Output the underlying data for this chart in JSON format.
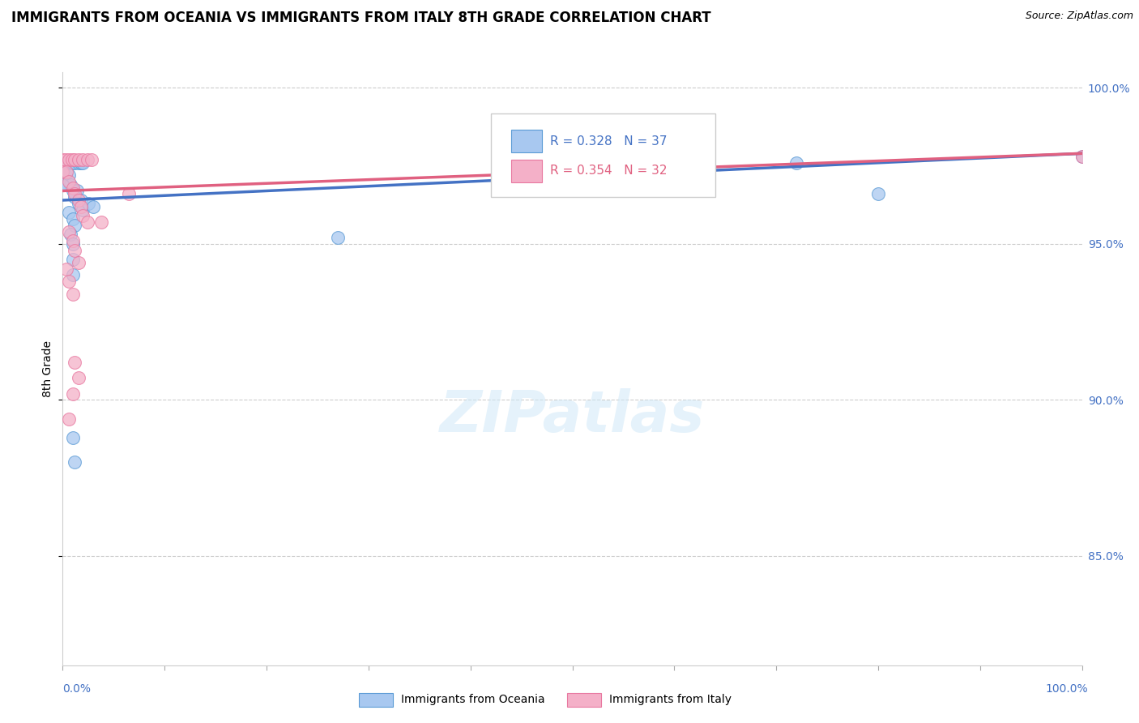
{
  "title": "IMMIGRANTS FROM OCEANIA VS IMMIGRANTS FROM ITALY 8TH GRADE CORRELATION CHART",
  "source": "Source: ZipAtlas.com",
  "ylabel": "8th Grade",
  "y_axis_min": 0.815,
  "y_axis_max": 1.005,
  "x_axis_min": 0.0,
  "x_axis_max": 1.0,
  "legend_r_blue": "R = 0.328",
  "legend_n_blue": "N = 37",
  "legend_r_pink": "R = 0.354",
  "legend_n_pink": "N = 32",
  "legend_label_blue": "Immigrants from Oceania",
  "legend_label_pink": "Immigrants from Italy",
  "blue_color": "#A8C8F0",
  "pink_color": "#F4B0C8",
  "blue_edge_color": "#5B9BD5",
  "pink_edge_color": "#E878A0",
  "blue_line_color": "#4472C4",
  "pink_line_color": "#E06080",
  "watermark_text": "ZIPatlas",
  "yticks": [
    0.85,
    0.9,
    0.95,
    1.0
  ],
  "ytick_labels": [
    "85.0%",
    "90.0%",
    "95.0%",
    "100.0%"
  ],
  "blue_points": [
    [
      0.0,
      0.976
    ],
    [
      0.002,
      0.976
    ],
    [
      0.004,
      0.976
    ],
    [
      0.006,
      0.976
    ],
    [
      0.008,
      0.976
    ],
    [
      0.01,
      0.976
    ],
    [
      0.012,
      0.976
    ],
    [
      0.016,
      0.976
    ],
    [
      0.018,
      0.976
    ],
    [
      0.02,
      0.976
    ],
    [
      0.003,
      0.972
    ],
    [
      0.006,
      0.972
    ],
    [
      0.004,
      0.969
    ],
    [
      0.008,
      0.969
    ],
    [
      0.01,
      0.967
    ],
    [
      0.014,
      0.967
    ],
    [
      0.012,
      0.965
    ],
    [
      0.018,
      0.964
    ],
    [
      0.016,
      0.963
    ],
    [
      0.02,
      0.961
    ],
    [
      0.025,
      0.963
    ],
    [
      0.03,
      0.962
    ],
    [
      0.006,
      0.96
    ],
    [
      0.01,
      0.958
    ],
    [
      0.012,
      0.956
    ],
    [
      0.008,
      0.953
    ],
    [
      0.01,
      0.95
    ],
    [
      0.01,
      0.945
    ],
    [
      0.01,
      0.94
    ],
    [
      0.01,
      0.888
    ],
    [
      0.012,
      0.88
    ],
    [
      0.27,
      0.952
    ],
    [
      0.72,
      0.976
    ],
    [
      0.8,
      0.966
    ],
    [
      1.0,
      0.978
    ],
    [
      0.0,
      0.973
    ],
    [
      0.0,
      0.969
    ]
  ],
  "pink_points": [
    [
      0.0,
      0.977
    ],
    [
      0.003,
      0.977
    ],
    [
      0.006,
      0.977
    ],
    [
      0.009,
      0.977
    ],
    [
      0.012,
      0.977
    ],
    [
      0.016,
      0.977
    ],
    [
      0.02,
      0.977
    ],
    [
      0.024,
      0.977
    ],
    [
      0.028,
      0.977
    ],
    [
      0.0,
      0.973
    ],
    [
      0.004,
      0.973
    ],
    [
      0.006,
      0.97
    ],
    [
      0.01,
      0.968
    ],
    [
      0.012,
      0.966
    ],
    [
      0.016,
      0.964
    ],
    [
      0.018,
      0.962
    ],
    [
      0.02,
      0.959
    ],
    [
      0.024,
      0.957
    ],
    [
      0.006,
      0.954
    ],
    [
      0.01,
      0.951
    ],
    [
      0.012,
      0.948
    ],
    [
      0.016,
      0.944
    ],
    [
      0.038,
      0.957
    ],
    [
      0.065,
      0.966
    ],
    [
      0.004,
      0.942
    ],
    [
      0.006,
      0.938
    ],
    [
      0.01,
      0.934
    ],
    [
      0.012,
      0.912
    ],
    [
      0.016,
      0.907
    ],
    [
      0.01,
      0.902
    ],
    [
      0.006,
      0.894
    ],
    [
      1.0,
      0.978
    ]
  ],
  "blue_trendline": [
    [
      0.0,
      0.964
    ],
    [
      1.0,
      0.979
    ]
  ],
  "pink_trendline": [
    [
      0.0,
      0.967
    ],
    [
      1.0,
      0.979
    ]
  ]
}
